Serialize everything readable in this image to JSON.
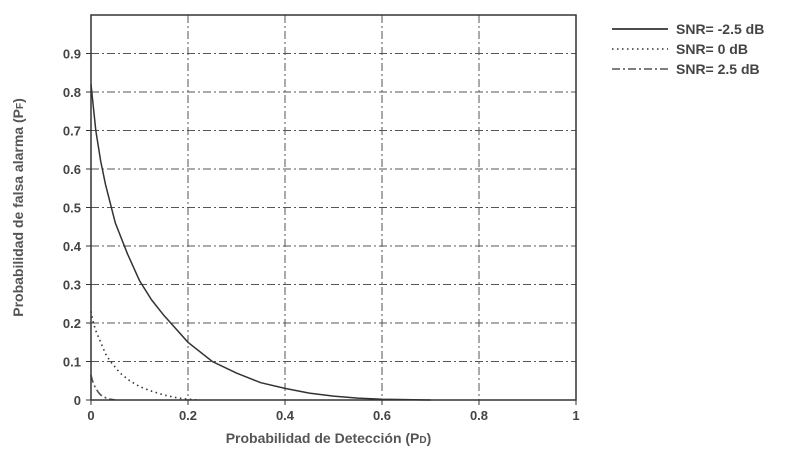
{
  "chart_data": {
    "type": "line",
    "title": "",
    "xlabel": "Probabilidad de Detección",
    "xlabel_symbol": "P",
    "xlabel_sub": "D",
    "ylabel": "Probabilidad de falsa alarma",
    "ylabel_symbol": "P",
    "ylabel_sub": "F",
    "xlim": [
      0,
      1
    ],
    "ylim": [
      0,
      1
    ],
    "xticks": [
      0,
      0.2,
      0.4,
      0.6,
      0.8,
      1
    ],
    "xtick_labels": [
      "0",
      "0.2",
      "0.4",
      "0.6",
      "0.8",
      "1"
    ],
    "yticks": [
      0,
      0.1,
      0.2,
      0.3,
      0.4,
      0.5,
      0.6,
      0.7,
      0.8,
      0.9
    ],
    "ytick_labels": [
      "0",
      "0.1",
      "0.2",
      "0.3",
      "0.4",
      "0.5",
      "0.6",
      "0.7",
      "0.8",
      "0.9"
    ],
    "grid": true,
    "legend_position": "outside-top-right",
    "series": [
      {
        "name": "SNR= -2.5 dB",
        "style": "solid",
        "color": "#333333",
        "x": [
          0.0,
          0.005,
          0.01,
          0.02,
          0.03,
          0.05,
          0.075,
          0.1,
          0.125,
          0.15,
          0.2,
          0.25,
          0.3,
          0.35,
          0.4,
          0.45,
          0.5,
          0.55,
          0.6,
          0.65,
          0.7
        ],
        "y": [
          0.82,
          0.76,
          0.7,
          0.62,
          0.56,
          0.46,
          0.38,
          0.31,
          0.26,
          0.22,
          0.15,
          0.1,
          0.07,
          0.045,
          0.03,
          0.018,
          0.01,
          0.005,
          0.002,
          0.001,
          0.0
        ]
      },
      {
        "name": "SNR= 0 dB",
        "style": "dotted",
        "color": "#333333",
        "x": [
          0.0,
          0.005,
          0.01,
          0.02,
          0.03,
          0.04,
          0.05,
          0.06,
          0.08,
          0.1,
          0.12,
          0.15,
          0.18,
          0.2,
          0.22
        ],
        "y": [
          0.23,
          0.2,
          0.18,
          0.15,
          0.12,
          0.1,
          0.085,
          0.07,
          0.05,
          0.035,
          0.025,
          0.013,
          0.005,
          0.002,
          0.0
        ]
      },
      {
        "name": "SNR= 2.5 dB",
        "style": "dashdot",
        "color": "#555555",
        "x": [
          0.0,
          0.003,
          0.006,
          0.01,
          0.015,
          0.02,
          0.03,
          0.04,
          0.05
        ],
        "y": [
          0.065,
          0.05,
          0.04,
          0.03,
          0.02,
          0.013,
          0.006,
          0.002,
          0.0
        ]
      }
    ]
  }
}
